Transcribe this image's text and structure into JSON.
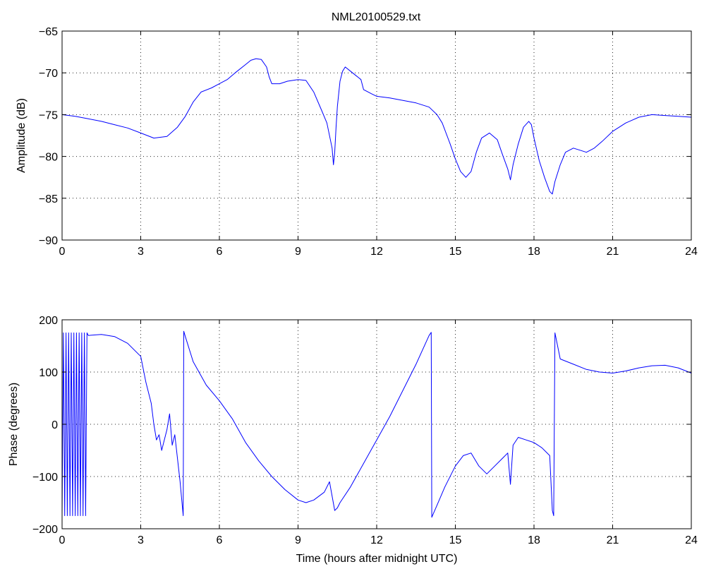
{
  "title": "NML20100529.txt",
  "chart_data": [
    {
      "type": "line",
      "title": "NML20100529.txt",
      "xlabel": "",
      "ylabel": "Amplitude (dB)",
      "xlim": [
        0,
        24
      ],
      "ylim": [
        -90,
        -65
      ],
      "xticks": [
        0,
        3,
        6,
        9,
        12,
        15,
        18,
        21,
        24
      ],
      "yticks": [
        -90,
        -85,
        -80,
        -75,
        -70,
        -65
      ],
      "grid": true,
      "color": "#0000ff",
      "x": [
        0,
        0.5,
        1,
        1.5,
        2,
        2.5,
        3,
        3.5,
        4,
        4.4,
        4.7,
        5,
        5.3,
        5.7,
        6,
        6.3,
        6.6,
        7,
        7.2,
        7.4,
        7.6,
        7.8,
        7.9,
        8,
        8.3,
        8.6,
        9,
        9.3,
        9.6,
        9.9,
        10.1,
        10.3,
        10.35,
        10.4,
        10.45,
        10.5,
        10.6,
        10.7,
        10.8,
        11,
        11.2,
        11.4,
        11.5,
        11.8,
        12,
        12.5,
        13,
        13.5,
        14,
        14.3,
        14.5,
        14.8,
        15,
        15.2,
        15.4,
        15.6,
        15.8,
        16,
        16.3,
        16.6,
        16.8,
        17,
        17.1,
        17.2,
        17.4,
        17.6,
        17.8,
        17.9,
        18,
        18.2,
        18.4,
        18.6,
        18.7,
        18.8,
        19,
        19.2,
        19.5,
        19.8,
        20,
        20.3,
        20.6,
        21,
        21.5,
        22,
        22.5,
        23,
        23.5,
        24
      ],
      "y": [
        -75,
        -75.2,
        -75.5,
        -75.8,
        -76.2,
        -76.6,
        -77.2,
        -77.8,
        -77.6,
        -76.5,
        -75.2,
        -73.5,
        -72.3,
        -71.8,
        -71.3,
        -70.8,
        -70,
        -69,
        -68.5,
        -68.3,
        -68.4,
        -69.3,
        -70.5,
        -71.3,
        -71.3,
        -71,
        -70.8,
        -70.9,
        -72.3,
        -74.5,
        -76,
        -79,
        -81,
        -79.5,
        -76.5,
        -74,
        -71,
        -69.8,
        -69.3,
        -69.8,
        -70.3,
        -70.8,
        -72,
        -72.5,
        -72.8,
        -73,
        -73.3,
        -73.6,
        -74.1,
        -75,
        -76,
        -78.5,
        -80.3,
        -81.8,
        -82.5,
        -81.8,
        -79.5,
        -77.8,
        -77.2,
        -78,
        -79.8,
        -81.5,
        -82.8,
        -81,
        -78.5,
        -76.5,
        -75.8,
        -76.2,
        -77.8,
        -80.5,
        -82.5,
        -84.2,
        -84.5,
        -83,
        -81,
        -79.5,
        -79,
        -79.3,
        -79.5,
        -79,
        -78.2,
        -77,
        -76,
        -75.3,
        -75,
        -75.1,
        -75.2,
        -75.3
      ]
    },
    {
      "type": "line",
      "title": "",
      "xlabel": "Time (hours after midnight UTC)",
      "ylabel": "Phase (degrees)",
      "xlim": [
        0,
        24
      ],
      "ylim": [
        -200,
        200
      ],
      "xticks": [
        0,
        3,
        6,
        9,
        12,
        15,
        18,
        21,
        24
      ],
      "yticks": [
        -200,
        -100,
        0,
        100,
        200
      ],
      "grid": true,
      "color": "#0000ff",
      "x": [
        0,
        0.05,
        0.1,
        0.15,
        0.2,
        0.25,
        0.3,
        0.35,
        0.4,
        0.45,
        0.5,
        0.55,
        0.6,
        0.65,
        0.7,
        0.75,
        0.8,
        0.85,
        0.9,
        0.95,
        1,
        1.5,
        2,
        2.5,
        3,
        3.2,
        3.4,
        3.5,
        3.6,
        3.7,
        3.8,
        4,
        4.1,
        4.2,
        4.3,
        4.5,
        4.62,
        4.64,
        4.7,
        5,
        5.5,
        6,
        6.5,
        7,
        7.5,
        8,
        8.5,
        9,
        9.3,
        9.6,
        10,
        10.2,
        10.4,
        10.5,
        10.6,
        11,
        11.5,
        12,
        12.5,
        13,
        13.5,
        14,
        14.08,
        14.1,
        14.3,
        14.6,
        15,
        15.3,
        15.6,
        15.9,
        16.2,
        16.5,
        16.8,
        17,
        17.1,
        17.2,
        17.4,
        17.7,
        18,
        18.3,
        18.6,
        18.7,
        18.75,
        18.8,
        19,
        19.5,
        20,
        20.5,
        21,
        21.5,
        22,
        22.5,
        23,
        23.5,
        24
      ],
      "y": [
        -175,
        175,
        -175,
        175,
        -175,
        175,
        -175,
        175,
        -175,
        175,
        -175,
        175,
        -175,
        175,
        -175,
        175,
        -175,
        175,
        -175,
        175,
        170,
        172,
        168,
        155,
        130,
        80,
        40,
        0,
        -30,
        -20,
        -50,
        -10,
        20,
        -40,
        -20,
        -110,
        -175,
        178,
        168,
        120,
        75,
        45,
        10,
        -35,
        -70,
        -100,
        -125,
        -145,
        -150,
        -145,
        -130,
        -110,
        -165,
        -160,
        -150,
        -120,
        -75,
        -30,
        15,
        65,
        115,
        170,
        176,
        -178,
        -155,
        -120,
        -80,
        -60,
        -55,
        -80,
        -95,
        -80,
        -65,
        -55,
        -115,
        -40,
        -25,
        -30,
        -35,
        -45,
        -60,
        -165,
        -175,
        175,
        125,
        115,
        105,
        100,
        98,
        102,
        108,
        112,
        113,
        108,
        98
      ]
    }
  ]
}
